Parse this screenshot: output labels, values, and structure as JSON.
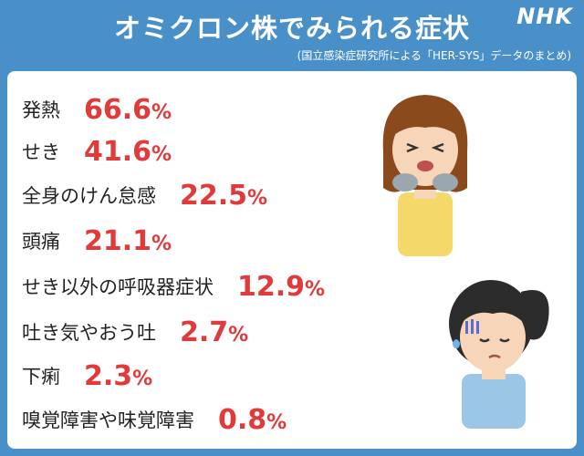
{
  "header": {
    "title": "オミクロン株でみられる症状",
    "logo": "NHK",
    "source": "(国立感染症研究所による「HER-SYS」データのまとめ)"
  },
  "colors": {
    "background": "#4a90c8",
    "value_text": "#e03a3a",
    "label_text": "#222222"
  },
  "chart_data": {
    "type": "table",
    "title": "オミクロン株でみられる症状",
    "subtitle": "(国立感染症研究所による「HER-SYS」データのまとめ)",
    "unit": "%",
    "rows": [
      {
        "label": "発熱",
        "value": 66.6,
        "display": "66.6"
      },
      {
        "label": "せき",
        "value": 41.6,
        "display": "41.6"
      },
      {
        "label": "全身のけん怠感",
        "value": 22.5,
        "display": "22.5"
      },
      {
        "label": "頭痛",
        "value": 21.1,
        "display": "21.1"
      },
      {
        "label": "せき以外の呼吸器症状",
        "value": 12.9,
        "display": "12.9"
      },
      {
        "label": "吐き気やおう吐",
        "value": 2.7,
        "display": "2.7"
      },
      {
        "label": "下痢",
        "value": 2.3,
        "display": "2.3"
      },
      {
        "label": "嗅覚障害や味覚障害",
        "value": 0.8,
        "display": "0.8"
      }
    ]
  },
  "illustrations": [
    "coughing-woman-icon",
    "headache-woman-icon"
  ]
}
